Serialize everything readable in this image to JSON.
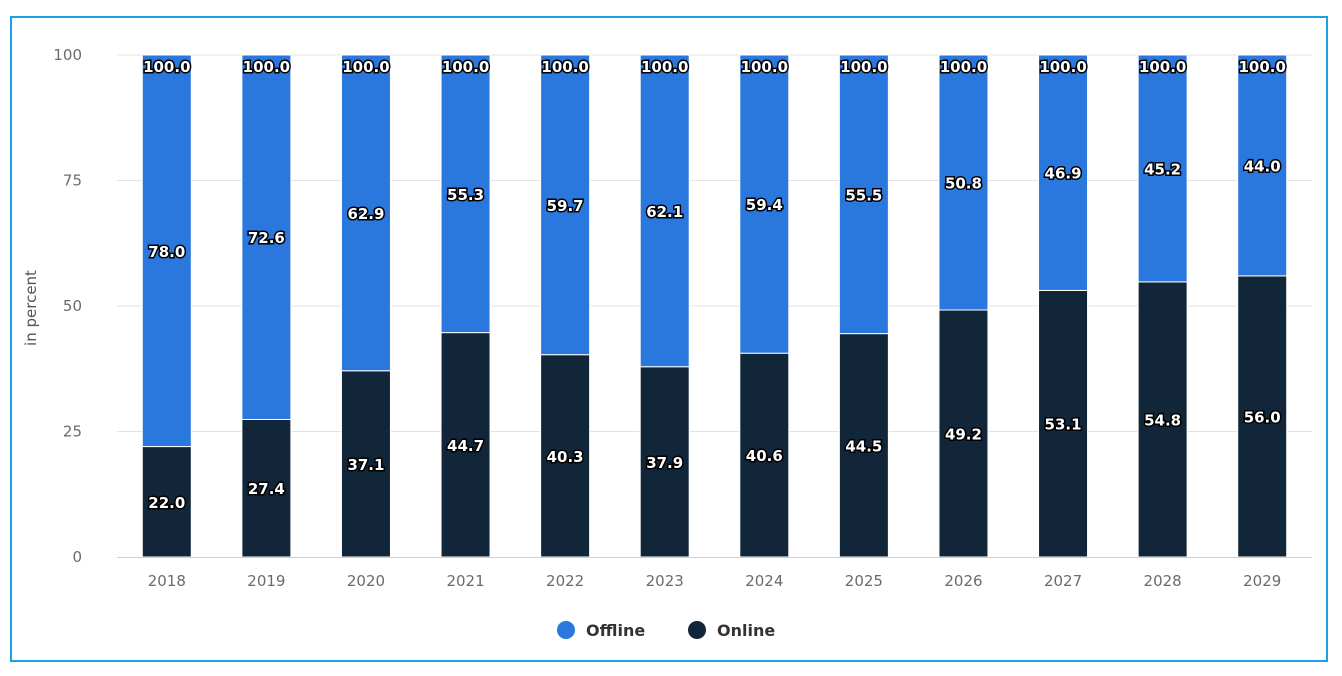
{
  "chart_data": {
    "type": "bar",
    "stacked": true,
    "categories": [
      "2018",
      "2019",
      "2020",
      "2021",
      "2022",
      "2023",
      "2024",
      "2025",
      "2026",
      "2027",
      "2028",
      "2029"
    ],
    "series": [
      {
        "name": "Online",
        "color": "#12263a",
        "values": [
          22.0,
          27.4,
          37.1,
          44.7,
          40.3,
          37.9,
          40.6,
          44.5,
          49.2,
          53.1,
          54.8,
          56.0
        ]
      },
      {
        "name": "Offline",
        "color": "#2a77de",
        "values": [
          78.0,
          72.6,
          62.9,
          55.3,
          59.7,
          62.1,
          59.4,
          55.5,
          50.8,
          46.9,
          45.2,
          44.0
        ]
      }
    ],
    "totals": [
      100.0,
      100.0,
      100.0,
      100.0,
      100.0,
      100.0,
      100.0,
      100.0,
      100.0,
      100.0,
      100.0,
      100.0
    ],
    "ylabel": "in percent",
    "xlabel": "",
    "ylim": [
      0,
      100
    ],
    "yticks": [
      0,
      25,
      50,
      75,
      100
    ],
    "grid": true,
    "legend": {
      "position": "bottom-center",
      "order": [
        "Offline",
        "Online"
      ]
    }
  }
}
